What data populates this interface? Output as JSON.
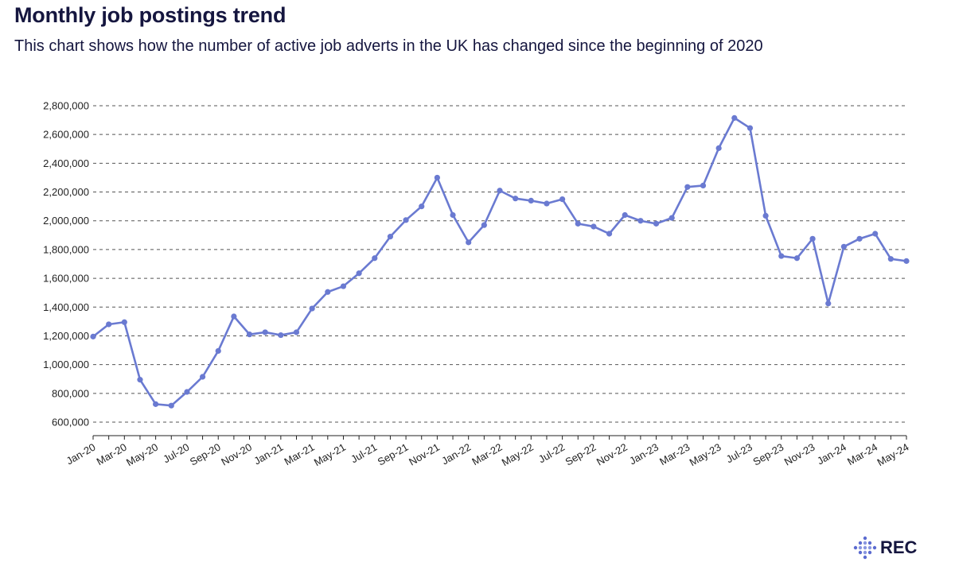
{
  "header": {
    "title": "Monthly job postings trend",
    "subtitle": "This chart shows how the number of active job adverts in the UK has changed since the beginning of 2020"
  },
  "logo": {
    "text": "REC",
    "icon": "rec-diamond-dots-icon"
  },
  "colors": {
    "line": "#6a7ad1",
    "text": "#15163f",
    "grid": "#555555"
  },
  "chart_data": {
    "type": "line",
    "title": "Monthly job postings trend",
    "xlabel": "",
    "ylabel": "",
    "ylim": [
      600000,
      2800000
    ],
    "yticks": [
      600000,
      800000,
      1000000,
      1200000,
      1400000,
      1600000,
      1800000,
      2000000,
      2200000,
      2400000,
      2600000,
      2800000
    ],
    "ytick_labels": [
      "600,000",
      "800,000",
      "1,000,000",
      "1,200,000",
      "1,400,000",
      "1,600,000",
      "1,800,000",
      "2,000,000",
      "2,200,000",
      "2,400,000",
      "2,600,000",
      "2,800,000"
    ],
    "grid": "horizontal dashed",
    "categories": [
      "Jan-20",
      "Feb-20",
      "Mar-20",
      "Apr-20",
      "May-20",
      "Jun-20",
      "Jul-20",
      "Aug-20",
      "Sep-20",
      "Oct-20",
      "Nov-20",
      "Dec-20",
      "Jan-21",
      "Feb-21",
      "Mar-21",
      "Apr-21",
      "May-21",
      "Jun-21",
      "Jul-21",
      "Aug-21",
      "Sep-21",
      "Oct-21",
      "Nov-21",
      "Dec-21",
      "Jan-22",
      "Feb-22",
      "Mar-22",
      "Apr-22",
      "May-22",
      "Jun-22",
      "Jul-22",
      "Aug-22",
      "Sep-22",
      "Oct-22",
      "Nov-22",
      "Dec-22",
      "Jan-23",
      "Feb-23",
      "Mar-23",
      "Apr-23",
      "May-23",
      "Jun-23",
      "Jul-23",
      "Aug-23",
      "Sep-23",
      "Oct-23",
      "Nov-23",
      "Dec-23",
      "Jan-24",
      "Feb-24",
      "Mar-24",
      "Apr-24",
      "May-24"
    ],
    "xtick_labels": [
      "Jan-20",
      "Mar-20",
      "May-20",
      "Jul-20",
      "Sep-20",
      "Nov-20",
      "Jan-21",
      "Mar-21",
      "May-21",
      "Jul-21",
      "Sep-21",
      "Nov-21",
      "Jan-22",
      "Mar-22",
      "May-22",
      "Jul-22",
      "Sep-22",
      "Nov-22",
      "Jan-23",
      "Mar-23",
      "May-23",
      "Jul-23",
      "Sep-23",
      "Nov-23",
      "Jan-24",
      "Mar-24",
      "May-24"
    ],
    "series": [
      {
        "name": "Active job adverts",
        "values": [
          1195000,
          1280000,
          1295000,
          895000,
          725000,
          715000,
          810000,
          915000,
          1095000,
          1335000,
          1210000,
          1225000,
          1205000,
          1225000,
          1390000,
          1505000,
          1545000,
          1635000,
          1740000,
          1890000,
          2005000,
          2100000,
          2300000,
          2040000,
          1850000,
          1970000,
          2210000,
          2155000,
          2140000,
          2120000,
          2150000,
          1980000,
          1960000,
          1910000,
          2040000,
          2000000,
          1980000,
          2020000,
          2235000,
          2245000,
          2505000,
          2715000,
          2645000,
          2035000,
          1755000,
          1740000,
          1875000,
          1425000,
          1820000,
          1875000,
          1910000,
          1735000,
          1720000
        ]
      }
    ]
  }
}
